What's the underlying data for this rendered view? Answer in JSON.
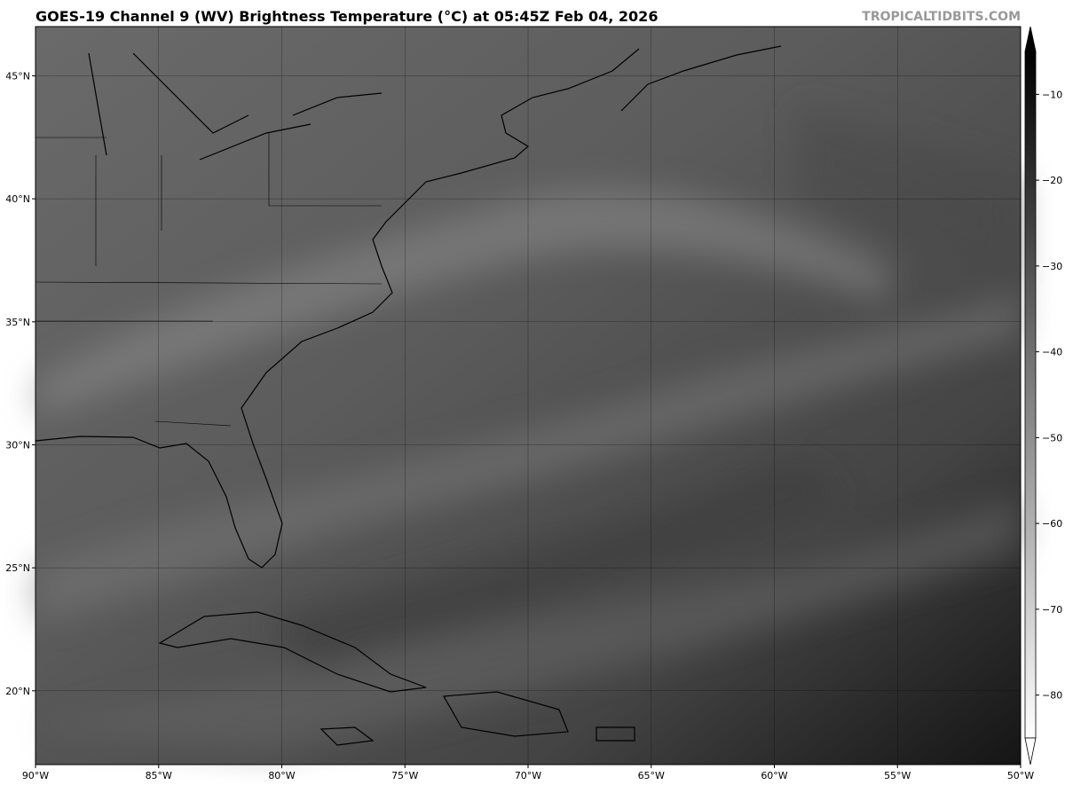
{
  "title": "GOES-19 Channel 9 (WV) Brightness Temperature (°C) at 05:45Z Feb 04, 2026",
  "credit": "TROPICALTIDBITS.COM",
  "map": {
    "extent": {
      "lon": [
        -90,
        -50
      ],
      "lat": [
        17,
        47
      ]
    },
    "lon_ticks": [
      -90,
      -85,
      -80,
      -75,
      -70,
      -65,
      -60,
      -55,
      -50
    ],
    "lat_ticks": [
      20,
      25,
      30,
      35,
      40,
      45
    ],
    "lon_labels": [
      "90°W",
      "85°W",
      "80°W",
      "75°W",
      "70°W",
      "65°W",
      "60°W",
      "55°W",
      "50°W"
    ],
    "lat_labels": [
      "20°N",
      "25°N",
      "30°N",
      "35°N",
      "40°N",
      "45°N"
    ],
    "colorscale": "grayscale, white=cold, black=warm"
  },
  "colorbar": {
    "range": [
      -85,
      -5
    ],
    "ticks": [
      -10,
      -20,
      -30,
      -40,
      -50,
      -60,
      -70,
      -80
    ],
    "labels": [
      "−10",
      "−20",
      "−30",
      "−40",
      "−50",
      "−60",
      "−70",
      "−80"
    ],
    "extend": "both"
  }
}
